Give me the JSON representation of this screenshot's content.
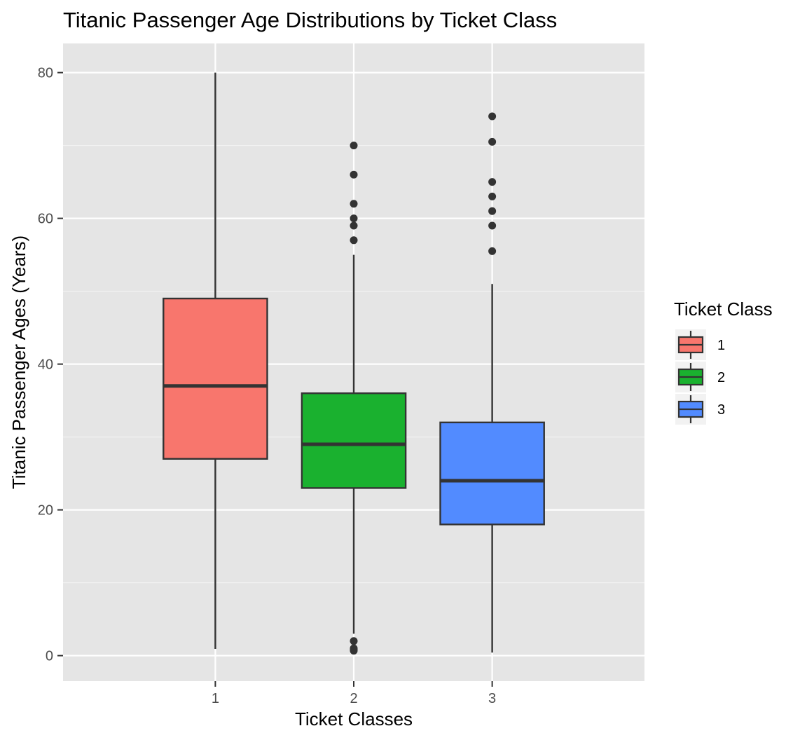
{
  "chart_data": {
    "type": "boxplot",
    "title": "Titanic Passenger Age Distributions by Ticket Class",
    "xlabel": "Ticket Classes",
    "ylabel": "Titanic Passenger Ages (Years)",
    "categories": [
      "1",
      "2",
      "3"
    ],
    "ylim": [
      -3.5,
      84
    ],
    "yticks": [
      0,
      20,
      40,
      60,
      80
    ],
    "grid": true,
    "legend": {
      "title": "Ticket Class",
      "position": "right",
      "entries": [
        "1",
        "2",
        "3"
      ]
    },
    "colors": [
      "#F8766D",
      "#1AB12F",
      "#528BFF"
    ],
    "series": [
      {
        "category": "1",
        "whisker_low": 0.92,
        "q1": 27,
        "median": 37,
        "q3": 49,
        "whisker_high": 80,
        "outliers": []
      },
      {
        "category": "2",
        "whisker_low": 3,
        "q1": 23,
        "median": 29,
        "q3": 36,
        "whisker_high": 55,
        "outliers": [
          0.67,
          0.83,
          1,
          2,
          57,
          59,
          60,
          62,
          66,
          70
        ]
      },
      {
        "category": "3",
        "whisker_low": 0.42,
        "q1": 18,
        "median": 24,
        "q3": 32,
        "whisker_high": 51,
        "outliers": [
          55.5,
          59,
          61,
          63,
          65,
          70.5,
          74
        ]
      }
    ]
  }
}
